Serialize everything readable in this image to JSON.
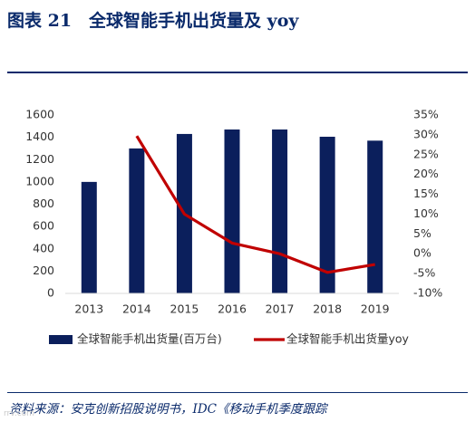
{
  "figure": {
    "title": "图表 21　全球智能手机出货量及 yoy",
    "source": "资料来源：安克创新招股说明书，IDC《移动手机季度跟踪",
    "watermark": "rrv.com"
  },
  "colors": {
    "bar": "#0b1f5c",
    "line": "#c00000",
    "title": "#0a2a6b",
    "axis": "#333333",
    "grid": "#d9d9d9"
  },
  "chart_data": {
    "type": "bar",
    "categories": [
      "2013",
      "2014",
      "2015",
      "2016",
      "2017",
      "2018",
      "2019"
    ],
    "series": [
      {
        "name": "全球智能手机出货量(百万台)",
        "type": "bar",
        "axis": "left",
        "values": [
          1000,
          1300,
          1430,
          1470,
          1470,
          1405,
          1370
        ]
      },
      {
        "name": "全球智能手机出货量yoy",
        "type": "line",
        "axis": "right",
        "values": [
          null,
          0.297,
          0.1,
          0.027,
          0.0,
          -0.047,
          -0.027
        ]
      }
    ],
    "y_left": {
      "min": 0,
      "max": 1600,
      "ticks": [
        "0",
        "200",
        "400",
        "600",
        "800",
        "1000",
        "1200",
        "1400",
        "1600"
      ]
    },
    "y_right": {
      "min": -0.1,
      "max": 0.35,
      "ticks": [
        "-10%",
        "-5%",
        "0%",
        "5%",
        "10%",
        "15%",
        "20%",
        "25%",
        "30%",
        "35%"
      ]
    },
    "grid": false,
    "legend": "bottom"
  }
}
